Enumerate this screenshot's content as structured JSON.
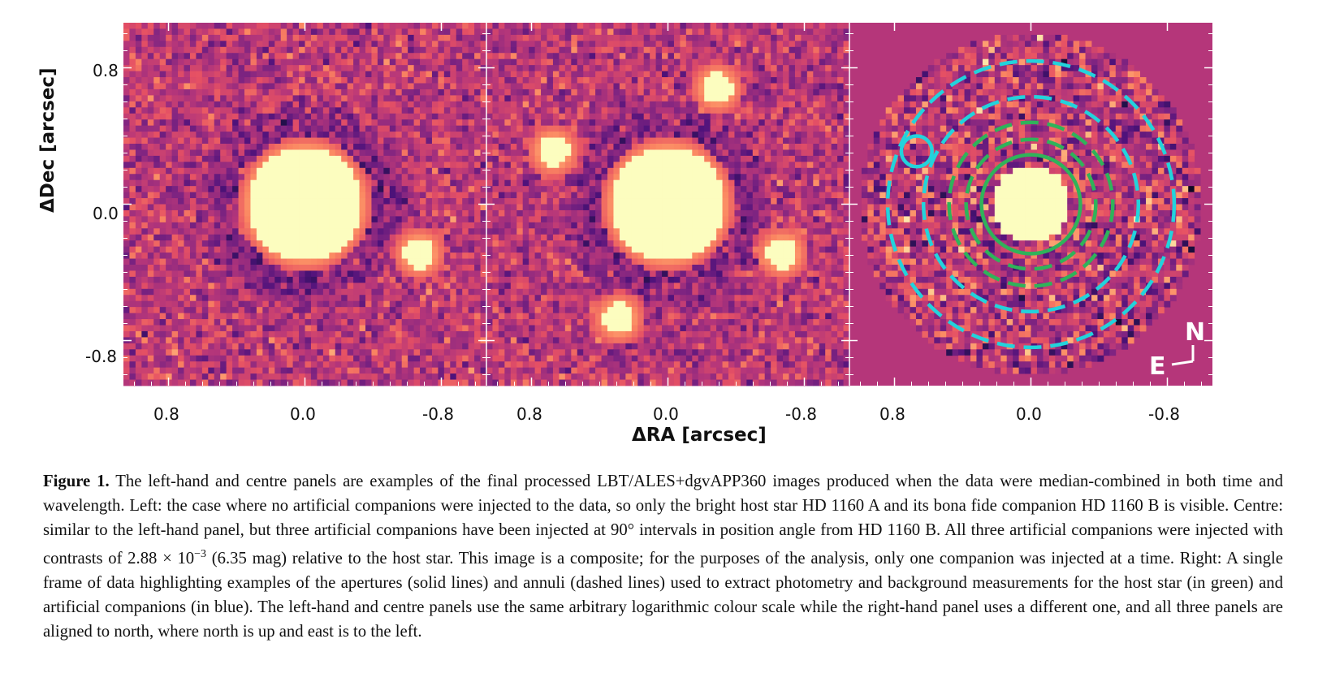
{
  "figure": {
    "ylabel": "ΔDec [arcsec]",
    "xlabel": "ΔRA [arcsec]",
    "y_ticks": [
      "0.8",
      "0.0",
      "-0.8"
    ],
    "x_ticks": [
      "0.8",
      "0.0",
      "-0.8"
    ],
    "panels": [
      {
        "name": "left",
        "colormap": "magma",
        "bright_sources": [
          {
            "label": "host star HD 1160 A",
            "ra": 0.0,
            "dec": 0.0
          },
          {
            "label": "companion HD 1160 B",
            "ra": -0.67,
            "dec": -0.29
          }
        ]
      },
      {
        "name": "centre",
        "colormap": "magma",
        "bright_sources": [
          {
            "label": "host star",
            "ra": 0.0,
            "dec": 0.0
          },
          {
            "label": "HD 1160 B",
            "ra": -0.67,
            "dec": -0.29
          },
          {
            "label": "artificial companion",
            "ra": 0.67,
            "dec": 0.31
          },
          {
            "label": "artificial companion",
            "ra": -0.29,
            "dec": 0.68
          },
          {
            "label": "artificial companion",
            "ra": 0.29,
            "dec": -0.67
          }
        ]
      },
      {
        "name": "right",
        "colormap": "magma",
        "host_star_radius": 0.23,
        "apertures": [
          {
            "kind": "host aperture (solid)",
            "color": "#2fb35a",
            "style": "solid",
            "ra": 0.0,
            "dec": 0.0,
            "r": 0.29
          },
          {
            "kind": "host annulus inner (dashed)",
            "color": "#2fb35a",
            "style": "dashed",
            "ra": 0.0,
            "dec": 0.0,
            "r": 0.38
          },
          {
            "kind": "host annulus outer (dashed)",
            "color": "#2fb35a",
            "style": "dashed",
            "ra": 0.0,
            "dec": 0.0,
            "r": 0.48
          },
          {
            "kind": "companion annulus inner (dashed)",
            "color": "#22d3dc",
            "style": "dashed",
            "ra": 0.0,
            "dec": 0.0,
            "r": 0.63
          },
          {
            "kind": "companion annulus outer (dashed)",
            "color": "#22d3dc",
            "style": "dashed",
            "ra": 0.0,
            "dec": 0.0,
            "r": 0.84
          },
          {
            "kind": "companion aperture (solid)",
            "color": "#22d3dc",
            "style": "solid",
            "ra": 0.67,
            "dec": 0.31,
            "r": 0.09
          }
        ],
        "compass": {
          "north": "N",
          "east": "E"
        }
      }
    ]
  },
  "caption": {
    "figure_number": "Figure 1.",
    "text_part1": " The left-hand and centre panels are examples of the final processed LBT/ALES+dgvAPP360 images produced when the data were median-combined in both time and wavelength. Left: the case where no artificial companions were injected to the data, so only the bright host star HD 1160 A and its bona fide companion HD 1160 B is visible. Centre: similar to the left-hand panel, but three artificial companions have been injected at 90° intervals in position angle from HD 1160 B. All three artificial companions were injected with contrasts of 2.88 × 10",
    "superscript": "−3",
    "text_part2": " (6.35 mag) relative to the host star. This image is a composite; for the purposes of the analysis, only one companion was injected at a time. Right: A single frame of data highlighting examples of the apertures (solid lines) and annuli (dashed lines) used to extract photometry and background measurements for the host star (in green) and artificial companions (in blue). The left-hand and centre panels use the same arbitrary logarithmic colour scale while the right-hand panel uses a different one, and all three panels are aligned to north, where north is up and east is to the left."
  }
}
